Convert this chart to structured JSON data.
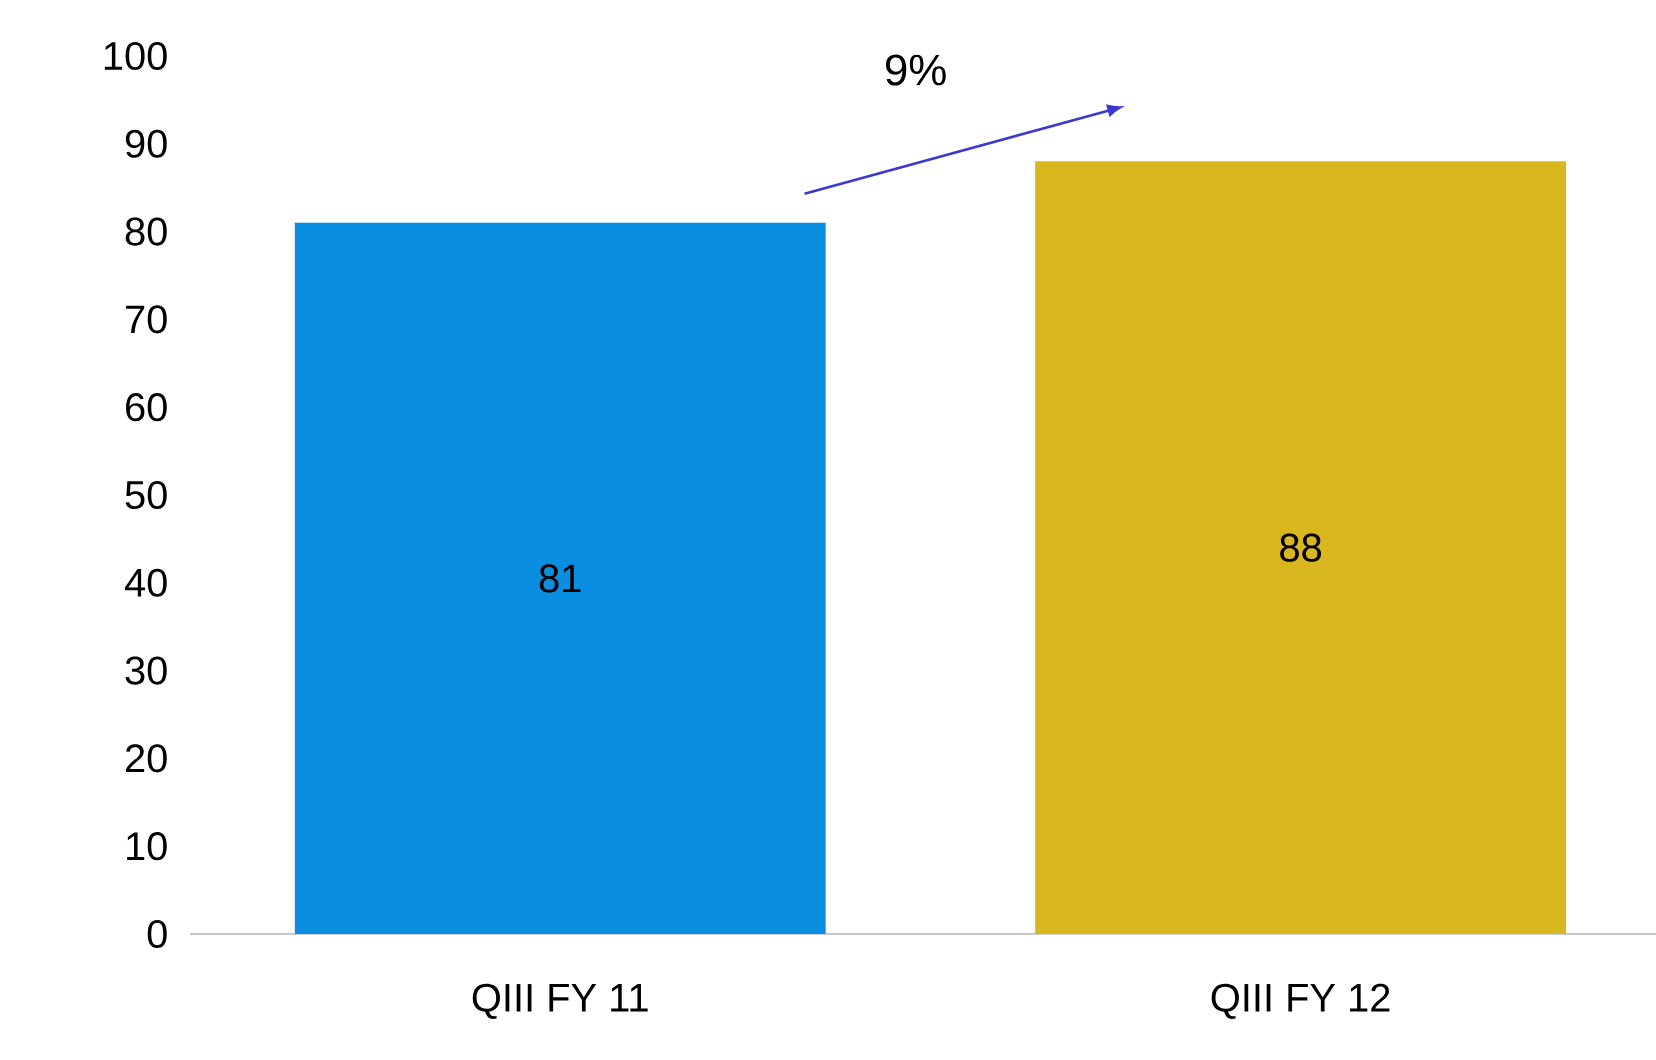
{
  "chart_data": {
    "type": "bar",
    "categories": [
      "QIII FY 11",
      "QIII FY 12"
    ],
    "values": [
      81,
      88
    ],
    "colors": [
      "#0a8ee0",
      "#d8b61e"
    ],
    "ylim": [
      0,
      100
    ],
    "yticks": [
      0,
      10,
      20,
      30,
      40,
      50,
      60,
      70,
      80,
      90,
      100
    ],
    "data_labels": true,
    "annotations": [
      "9%"
    ]
  }
}
